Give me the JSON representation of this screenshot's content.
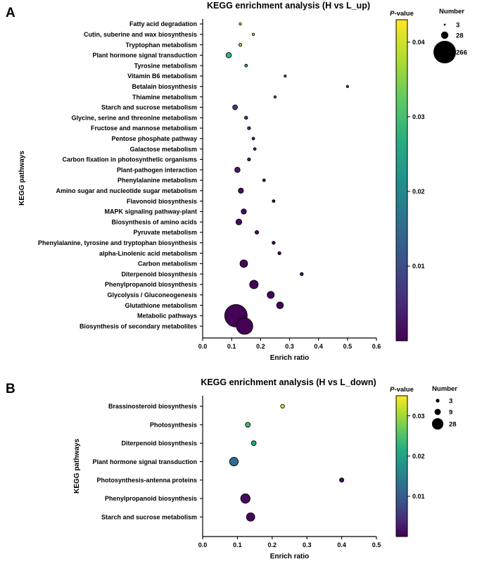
{
  "chart_data": [
    {
      "panel": "A",
      "type": "scatter",
      "title": "KEGG enrichment analysis (H vs L_up)",
      "xlabel": "Enrich ratio",
      "ylabel": "KEGG pathways",
      "xlim": [
        0,
        0.6
      ],
      "xticks": [
        "0.0",
        "0.1",
        "0.2",
        "0.3",
        "0.4",
        "0.5",
        "0.6"
      ],
      "color_label_prefix": "P",
      "color_label_suffix": "-value",
      "color_range": [
        0,
        0.043
      ],
      "color_ticks": [
        "0.04",
        "0.03",
        "0.02",
        "0.01"
      ],
      "size_label": "Number",
      "size_legend": [
        "3",
        "28",
        "266"
      ],
      "categories": [
        "Fatty acid degradation",
        "Cutin, suberine and wax biosynthesis",
        "Tryptophan metabolism",
        "Plant hormone signal transduction",
        "Tyrosine metabolism",
        "Vitamin B6 metabolism",
        "Betalain biosynthesis",
        "Thiamine metabolism",
        "Starch and sucrose metabolism",
        "Glycine, serine and threonine metabolism",
        "Fructose and mannose metabolism",
        "Pentose phosphate pathway",
        "Galactose metabolism",
        "Carbon fixation in photosynthetic organisms",
        "Plant-pathogen interaction",
        "Phenylalanine metabolism",
        "Amino sugar and nucleotide sugar metabolism",
        "Flavonoid biosynthesis",
        "MAPK signaling pathway-plant",
        "Biosynthesis of amino acids",
        "Pyruvate metabolism",
        "Phenylalanine, tyrosine and tryptophan biosynthesis",
        "alpha-Linolenic acid metabolism",
        "Carbon metabolism",
        "Diterpenoid biosynthesis",
        "Phenylpropanoid biosynthesis",
        "Glycolysis / Gluconeogenesis",
        "Glutathione metabolism",
        "Metabolic pathways",
        "Biosynthesis of secondary metabolites"
      ],
      "enrich_ratio": [
        0.13,
        0.175,
        0.13,
        0.09,
        0.15,
        0.285,
        0.5,
        0.25,
        0.112,
        0.15,
        0.16,
        0.175,
        0.18,
        0.16,
        0.12,
        0.212,
        0.132,
        0.245,
        0.142,
        0.125,
        0.187,
        0.245,
        0.265,
        0.142,
        0.342,
        0.177,
        0.235,
        0.267,
        0.115,
        0.145
      ],
      "p_value": [
        0.0425,
        0.038,
        0.036,
        0.028,
        0.025,
        0.017,
        0.011,
        0.014,
        0.008,
        0.007,
        0.006,
        0.005,
        0.004,
        0.004,
        0.003,
        0.002,
        0.002,
        0.0015,
        0.0015,
        0.0015,
        0.001,
        0.0008,
        0.0008,
        0.0008,
        0.0005,
        0.0005,
        0.0004,
        0.0003,
        0.0002,
        0.0001
      ],
      "number": [
        3,
        3,
        5,
        15,
        4,
        3,
        3,
        3,
        12,
        5,
        5,
        4,
        4,
        5,
        15,
        4,
        14,
        4,
        14,
        18,
        7,
        5,
        5,
        30,
        5,
        38,
        26,
        24,
        266,
        140
      ]
    },
    {
      "panel": "B",
      "type": "scatter",
      "title": "KEGG enrichment analysis (H vs L_down)",
      "xlabel": "Enrich ratio",
      "ylabel": "KEGG pathways",
      "xlim": [
        0,
        0.5
      ],
      "xticks": [
        "0.0",
        "0.1",
        "0.2",
        "0.3",
        "0.4",
        "0.5"
      ],
      "color_label_prefix": "P",
      "color_label_suffix": "-value",
      "color_range": [
        0,
        0.035
      ],
      "color_ticks": [
        "0.03",
        "0.02",
        "0.01"
      ],
      "size_label": "Number",
      "size_legend": [
        "3",
        "9",
        "28"
      ],
      "categories": [
        "Brassinosteroid biosynthesis",
        "Photosynthesis",
        "Diterpenoid biosynthesis",
        "Plant hormone signal transduction",
        "Photosynthesis-antenna proteins",
        "Phenylpropanoid biosynthesis",
        "Starch and sucrose metabolism"
      ],
      "enrich_ratio": [
        0.23,
        0.13,
        0.147,
        0.09,
        0.4,
        0.123,
        0.138
      ],
      "p_value": [
        0.035,
        0.024,
        0.021,
        0.012,
        0.0015,
        0.001,
        0.0008
      ],
      "number": [
        3,
        5,
        5,
        16,
        4,
        19,
        15
      ]
    }
  ]
}
